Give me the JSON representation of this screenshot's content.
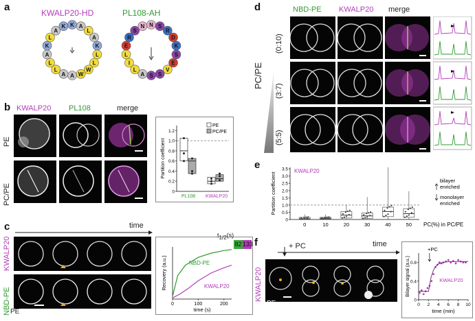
{
  "panels": {
    "a": "a",
    "b": "b",
    "c": "c",
    "d": "d",
    "e": "e",
    "f": "f"
  },
  "a": {
    "title1": "KWALP20-HD",
    "title2": "PL108-AH",
    "wheel1": [
      {
        "aa": "K",
        "color": "#8fa8d8"
      },
      {
        "aa": "A",
        "color": "#c8c8c8"
      },
      {
        "aa": "L",
        "color": "#f2dc3a"
      },
      {
        "aa": "A",
        "color": "#c8c8c8"
      },
      {
        "aa": "K",
        "color": "#8fa8d8"
      },
      {
        "aa": "L",
        "color": "#f2dc3a"
      },
      {
        "aa": "L",
        "color": "#f2dc3a"
      },
      {
        "aa": "W",
        "color": "#f2dc3a"
      },
      {
        "aa": "W",
        "color": "#f2dc3a"
      },
      {
        "aa": "A",
        "color": "#c8c8c8"
      },
      {
        "aa": "A",
        "color": "#c8c8c8"
      },
      {
        "aa": "L",
        "color": "#f2dc3a"
      },
      {
        "aa": "L",
        "color": "#f2dc3a"
      },
      {
        "aa": "A",
        "color": "#c8c8c8"
      },
      {
        "aa": "K",
        "color": "#8fa8d8"
      },
      {
        "aa": "L",
        "color": "#f2dc3a"
      },
      {
        "aa": "A",
        "color": "#c8c8c8"
      },
      {
        "aa": "K",
        "color": "#8fa8d8"
      }
    ],
    "wheel2": [
      {
        "aa": "N",
        "color": "#e6b3cf"
      },
      {
        "aa": "S",
        "color": "#8b45a8"
      },
      {
        "aa": "R",
        "color": "#3a6fc4"
      },
      {
        "aa": "D",
        "color": "#d33b2f"
      },
      {
        "aa": "K",
        "color": "#3a6fc4"
      },
      {
        "aa": "S",
        "color": "#8b45a8"
      },
      {
        "aa": "E",
        "color": "#d33b2f"
      },
      {
        "aa": "V",
        "color": "#f2dc3a"
      },
      {
        "aa": "S",
        "color": "#8b45a8"
      },
      {
        "aa": "S",
        "color": "#8b45a8"
      },
      {
        "aa": "A",
        "color": "#c8c8c8"
      },
      {
        "aa": "L",
        "color": "#f2dc3a"
      },
      {
        "aa": "I",
        "color": "#f2dc3a"
      },
      {
        "aa": "L",
        "color": "#f2dc3a"
      },
      {
        "aa": "E",
        "color": "#d33b2f"
      },
      {
        "aa": "R",
        "color": "#3a6fc4"
      },
      {
        "aa": "S",
        "color": "#8b45a8"
      },
      {
        "aa": "N",
        "color": "#e6b3cf"
      }
    ]
  },
  "b": {
    "col1": "KWALP20",
    "col2": "PL108",
    "col3": "merge",
    "row1": "PE",
    "row2": "PC/PE",
    "chart": {
      "ylabel": "Partition coefficient",
      "yticks": [
        "0",
        "0.2",
        "0.4",
        "0.6",
        "0.8",
        "1.0",
        "1.2"
      ],
      "legend": [
        "PE",
        "PC/PE"
      ],
      "xlabels": [
        "PL108",
        "KWALP20"
      ]
    }
  },
  "c": {
    "time": "time",
    "row1": "KWALP20",
    "row2": "NBD-PE",
    "pe": "PE",
    "t12": "t",
    "t12_sub": "1/2",
    "t12_unit": "(s)",
    "t12_vals": [
      "82",
      "133"
    ],
    "chart": {
      "ylabel": "Recovery (a.u.)",
      "xlabel": "time (s)",
      "xticks": [
        "0",
        "100",
        "200"
      ],
      "series_labels": [
        "NBD-PE",
        "KWALP20"
      ]
    }
  },
  "d": {
    "col1": "NBD-PE",
    "col2": "KWALP20",
    "col3": "merge",
    "ratios": [
      "(0:10)",
      "(3:7)",
      "(5:5)"
    ],
    "side": "PC/PE"
  },
  "e": {
    "ylabel": "Partition coefficient",
    "series": "KWALP20",
    "xlabel": "PC(%) in PC/PE",
    "yticks": [
      "0",
      "0.5",
      "1.0",
      "1.5",
      "2.0",
      "2.5",
      "3.0",
      "3.5"
    ],
    "categories": [
      "0",
      "10",
      "20",
      "30",
      "40",
      "50"
    ],
    "bilayer": "bilayer",
    "enriched1": "enriched",
    "monolayer": "monolayer",
    "enriched2": "enriched"
  },
  "f": {
    "row": "KWALP20",
    "pe": "PE",
    "pc": "+ PC",
    "time": "time",
    "chart": {
      "ylabel": "Bilayer signal (a.u.)",
      "xlabel": "time (min)",
      "xticks": [
        "0",
        "2",
        "4",
        "6",
        "8",
        "10"
      ],
      "yticks": [
        "0",
        "0.4",
        "0.8"
      ],
      "annot": "+PC",
      "series": "KWALP20"
    }
  },
  "colors": {
    "magenta": "#b23bb8",
    "green": "#2e9a2e"
  },
  "chart_data": [
    {
      "type": "bar",
      "panel": "b",
      "ylabel": "Partition coefficient",
      "ylim": [
        0,
        1.3
      ],
      "categories": [
        "PL108",
        "KWALP20"
      ],
      "series": [
        {
          "name": "PE",
          "median": [
            0.8,
            0.2
          ],
          "q1": [
            0.6,
            0.15
          ],
          "q3": [
            1.05,
            0.28
          ],
          "points": [
            [
              1.05,
              0.75,
              0.6
            ],
            [
              0.2,
              0.15,
              0.25
            ]
          ]
        },
        {
          "name": "PC/PE",
          "median": [
            0.6,
            0.25
          ],
          "q1": [
            0.35,
            0.2
          ],
          "q3": [
            0.65,
            0.33
          ],
          "points": [
            [
              0.65,
              0.35,
              0.4
            ],
            [
              0.3,
              0.22,
              0.35
            ]
          ]
        }
      ]
    },
    {
      "type": "line",
      "panel": "c",
      "xlabel": "time (s)",
      "ylabel": "Recovery (a.u.)",
      "xlim": [
        0,
        230
      ],
      "series": [
        {
          "name": "NBD-PE",
          "x": [
            0,
            20,
            50,
            100,
            150,
            200,
            230
          ],
          "y": [
            0.05,
            0.45,
            0.65,
            0.8,
            0.88,
            0.93,
            0.95
          ]
        },
        {
          "name": "KWALP20",
          "x": [
            0,
            30,
            60,
            100,
            150,
            200,
            230
          ],
          "y": [
            0.02,
            0.1,
            0.2,
            0.35,
            0.5,
            0.6,
            0.65
          ]
        }
      ]
    },
    {
      "type": "scatter",
      "panel": "e",
      "xlabel": "PC(%) in PC/PE",
      "ylabel": "Partition coefficient",
      "ylim": [
        0,
        3.6
      ],
      "categories": [
        "0",
        "10",
        "20",
        "30",
        "40",
        "50"
      ],
      "median": [
        0.05,
        0.08,
        0.3,
        0.25,
        0.55,
        0.4
      ],
      "q1": [
        0.02,
        0.03,
        0.1,
        0.08,
        0.2,
        0.15
      ],
      "q3": [
        0.15,
        0.15,
        0.55,
        0.45,
        0.85,
        0.75
      ],
      "whisker_hi": [
        0.35,
        0.35,
        1.0,
        1.55,
        4.1,
        1.95
      ]
    },
    {
      "type": "scatter",
      "panel": "f",
      "xlabel": "time (min)",
      "ylabel": "Bilayer signal (a.u.)",
      "xlim": [
        0,
        10
      ],
      "ylim": [
        0,
        1
      ],
      "x": [
        0.2,
        0.6,
        1,
        1.4,
        1.8,
        2.2,
        2.6,
        3,
        3.4,
        3.8,
        4.2,
        4.6,
        5,
        5.5,
        6,
        6.5,
        7,
        7.5,
        8,
        8.5,
        9,
        9.5
      ],
      "y": [
        0.15,
        0.2,
        0.12,
        0.18,
        0.25,
        0.3,
        0.4,
        0.55,
        0.7,
        0.75,
        0.8,
        0.78,
        0.8,
        0.82,
        0.85,
        0.8,
        0.83,
        0.78,
        0.85,
        0.82,
        0.8,
        0.8
      ]
    }
  ]
}
